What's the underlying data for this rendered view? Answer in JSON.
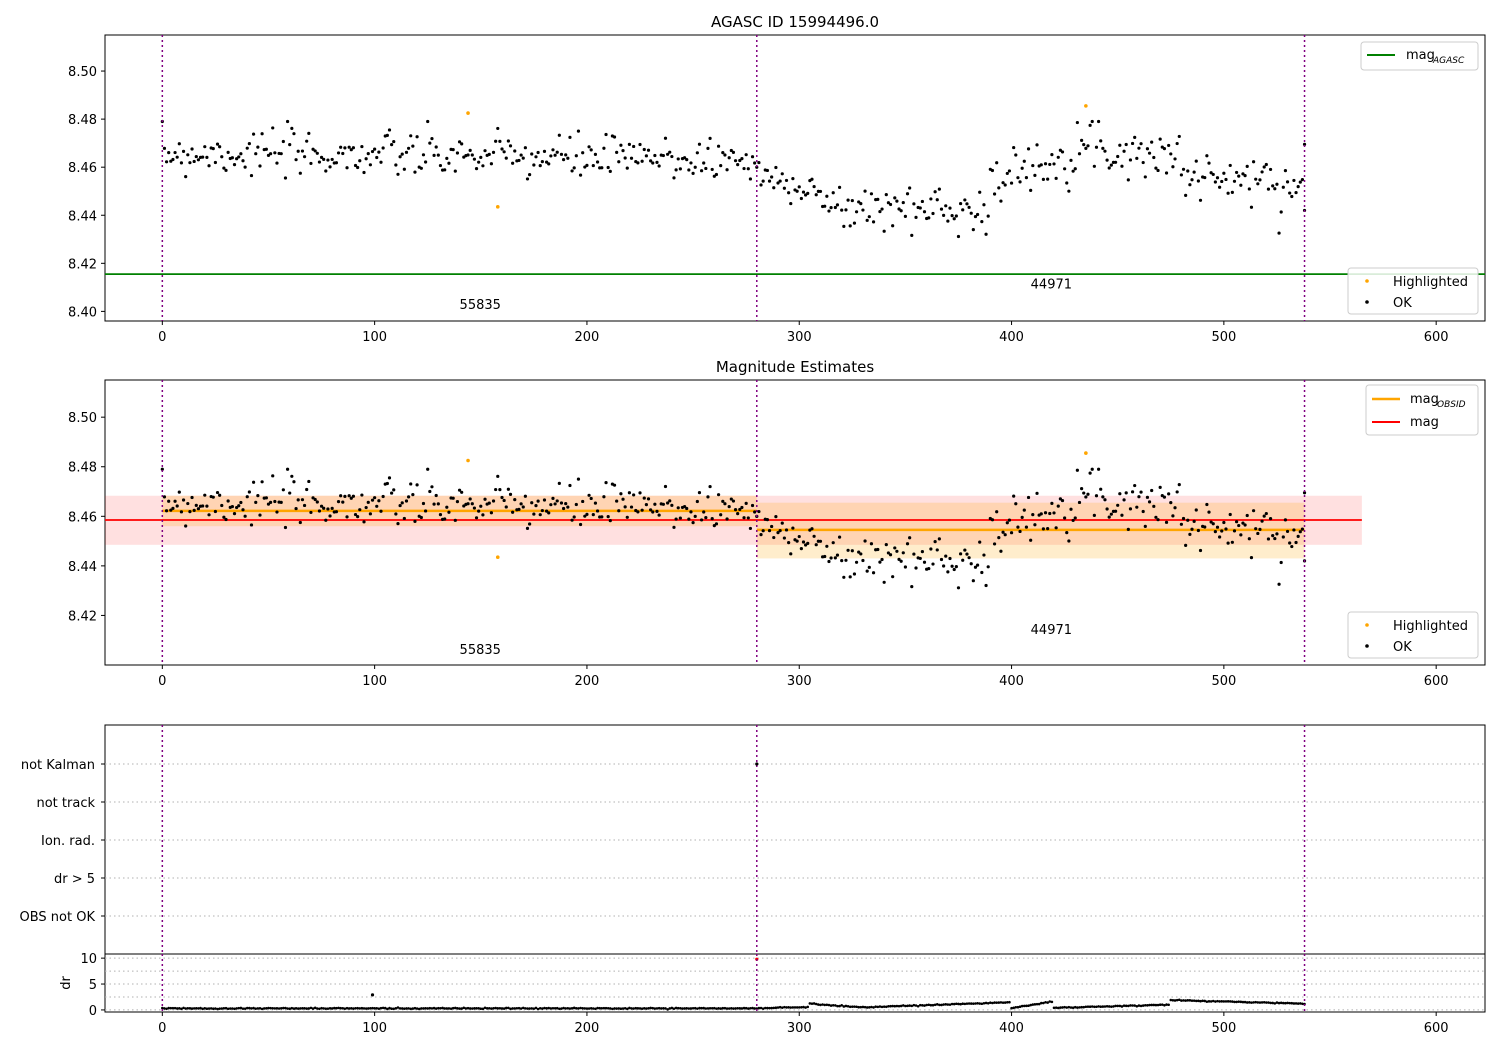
{
  "chart_data": [
    {
      "type": "scatter",
      "title": "AGASC ID 15994496.0",
      "xlim": [
        -27,
        623
      ],
      "ylim": [
        8.396,
        8.515
      ],
      "xticks": [
        0,
        100,
        200,
        300,
        400,
        500,
        600
      ],
      "yticks": [
        8.4,
        8.42,
        8.44,
        8.46,
        8.48,
        8.5
      ],
      "ytick_labels": [
        "8.40",
        "8.42",
        "8.44",
        "8.46",
        "8.48",
        "8.50"
      ],
      "grid": false,
      "obs_boundaries": [
        0,
        280,
        538
      ],
      "obs_labels": [
        {
          "text": "55835",
          "x": 140,
          "y": 8.401
        },
        {
          "text": "44971",
          "x": 409,
          "y": 8.4095
        }
      ],
      "lines": [
        {
          "name": "magAGASC",
          "legend_main": "mag",
          "legend_sub": "AGASC",
          "color": "#008000",
          "y": 8.4155,
          "x": [
            -27,
            623
          ]
        }
      ],
      "highlighted": {
        "name": "Highlighted",
        "color": "#ffa500",
        "points": [
          [
            144,
            8.4825
          ],
          [
            158,
            8.4435
          ],
          [
            435,
            8.4855
          ]
        ]
      },
      "ok_segments": [
        {
          "x0": 0,
          "x1": 280,
          "start": 8.466,
          "end": 8.463,
          "noise": 0.006
        },
        {
          "x0": 280,
          "x1": 310,
          "start": 8.456,
          "end": 8.452,
          "noise": 0.005
        },
        {
          "x0": 310,
          "x1": 390,
          "start": 8.443,
          "end": 8.443,
          "noise": 0.006
        },
        {
          "x0": 390,
          "x1": 440,
          "start": 8.452,
          "end": 8.472,
          "noise": 0.006
        },
        {
          "x0": 440,
          "x1": 480,
          "start": 8.467,
          "end": 8.465,
          "noise": 0.006
        },
        {
          "x0": 480,
          "x1": 539,
          "start": 8.457,
          "end": 8.452,
          "noise": 0.006
        }
      ],
      "ok_name": "OK",
      "legend_top": "top-right",
      "legend_bottom": "bottom-right"
    },
    {
      "type": "scatter",
      "title": "Magnitude Estimates",
      "xlim": [
        -27,
        623
      ],
      "ylim": [
        8.4,
        8.515
      ],
      "xticks": [
        0,
        100,
        200,
        300,
        400,
        500,
        600
      ],
      "yticks": [
        8.42,
        8.44,
        8.46,
        8.48,
        8.5
      ],
      "ytick_labels": [
        "8.42",
        "8.44",
        "8.46",
        "8.48",
        "8.50"
      ],
      "grid": false,
      "obs_boundaries": [
        0,
        280,
        538
      ],
      "obs_labels": [
        {
          "text": "55835",
          "x": 140,
          "y": 8.4045
        },
        {
          "text": "44971",
          "x": 409,
          "y": 8.4125
        }
      ],
      "bands": [
        {
          "x0": -27,
          "x1": 565,
          "y0": 8.4485,
          "y1": 8.4683,
          "color": "#ff0000",
          "opacity": 0.12
        },
        {
          "x0": 0,
          "x1": 280,
          "y0": 8.456,
          "y1": 8.4683,
          "color": "#ffa500",
          "opacity": 0.2
        },
        {
          "x0": 280,
          "x1": 538,
          "y0": 8.443,
          "y1": 8.4655,
          "color": "#ffa500",
          "opacity": 0.2
        }
      ],
      "mag_obsid": {
        "name": "magOBSID",
        "legend_main": "mag",
        "legend_sub": "OBSID",
        "color": "#ffa500",
        "segments": [
          {
            "x0": 0,
            "x1": 280,
            "y": 8.4622
          },
          {
            "x0": 280,
            "x1": 538,
            "y": 8.4545
          }
        ]
      },
      "mag": {
        "name": "mag",
        "color": "#ff0000",
        "y": 8.4585,
        "x": [
          -27,
          565
        ]
      },
      "highlighted": {
        "name": "Highlighted",
        "color": "#ffa500",
        "points": [
          [
            144,
            8.4825
          ],
          [
            158,
            8.4435
          ],
          [
            435,
            8.4855
          ]
        ]
      },
      "ok_name": "OK",
      "legend_top": "top-right",
      "legend_bottom": "bottom-right"
    },
    {
      "type": "scatter",
      "title": "",
      "xlim": [
        -27,
        623
      ],
      "categories": [
        "not Kalman",
        "not track",
        "Ion. rad.",
        "dr > 5",
        "OBS not OK"
      ],
      "grid": true,
      "obs_boundaries": [
        0,
        280,
        538
      ],
      "flags": [
        {
          "category": "not Kalman",
          "x": 280
        }
      ]
    },
    {
      "type": "scatter",
      "title": "",
      "xlim": [
        -27,
        623
      ],
      "ylim": [
        -0.4,
        10.8
      ],
      "ylabel": "dr",
      "xticks": [
        0,
        100,
        200,
        300,
        400,
        500,
        600
      ],
      "yticks": [
        0,
        5,
        10
      ],
      "ytick_labels": [
        "0",
        "5",
        "10"
      ],
      "grid": true,
      "obs_boundaries": [
        0,
        280,
        538
      ],
      "dr_segments": [
        {
          "x0": 0,
          "x1": 280,
          "start": 0.3,
          "end": 0.3
        },
        {
          "x0": 280,
          "x1": 305,
          "start": 0.3,
          "end": 0.6
        },
        {
          "x0": 305,
          "x1": 330,
          "start": 1.2,
          "end": 0.5
        },
        {
          "x0": 330,
          "x1": 400,
          "start": 0.5,
          "end": 1.5
        },
        {
          "x0": 400,
          "x1": 420,
          "start": 0.3,
          "end": 1.7
        },
        {
          "x0": 420,
          "x1": 475,
          "start": 0.4,
          "end": 1.0
        },
        {
          "x0": 475,
          "x1": 539,
          "start": 1.9,
          "end": 1.2
        }
      ],
      "dr_outliers": [
        {
          "x": 99,
          "y": 2.9,
          "color": "#000000"
        },
        {
          "x": 280,
          "y": 9.8,
          "color": "#ff0000"
        }
      ]
    }
  ]
}
